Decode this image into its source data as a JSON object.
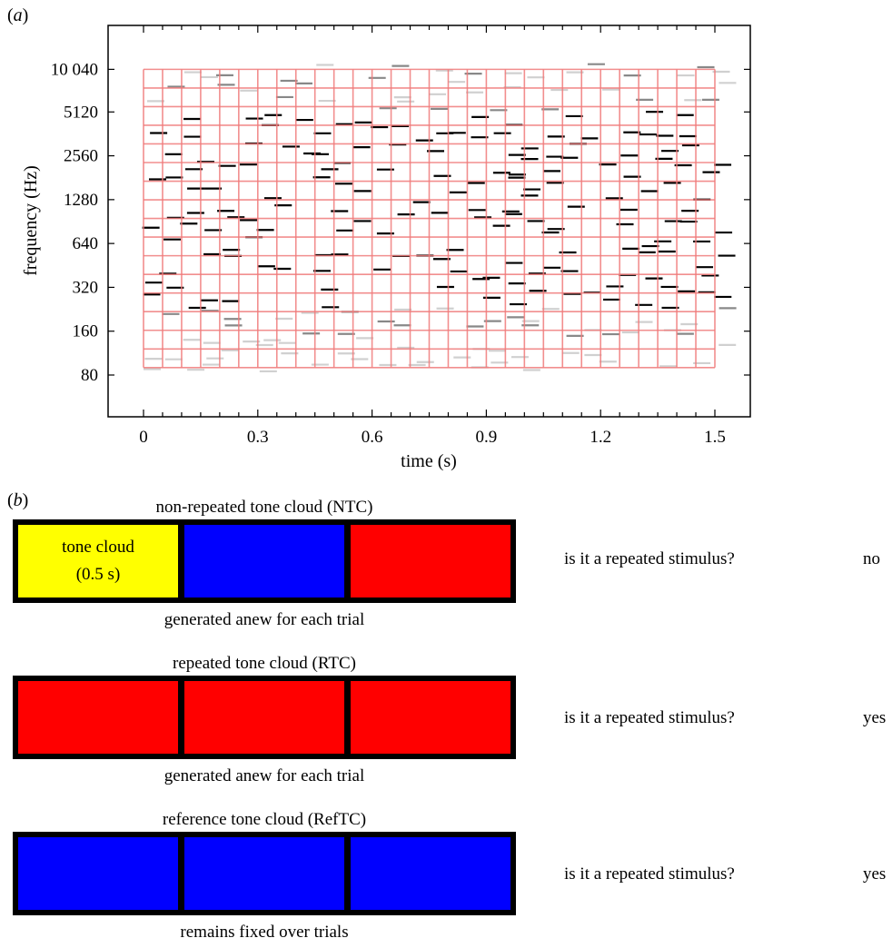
{
  "panel_a": {
    "label": "a",
    "chart_data": {
      "type": "tone-cloud spectrogram",
      "xlabel": "time (s)",
      "ylabel": "frequency (Hz)",
      "x_ticks": [
        "0",
        "0.3",
        "0.6",
        "0.9",
        "1.2",
        "1.5"
      ],
      "x_tick_values": [
        0,
        0.3,
        0.6,
        0.9,
        1.2,
        1.5
      ],
      "y_ticks": [
        "80",
        "160",
        "320",
        "640",
        "1280",
        "2560",
        "5120",
        "10 040"
      ],
      "y_tick_values": [
        80,
        160,
        320,
        640,
        1280,
        2560,
        5120,
        10040
      ],
      "y_scale": "log2",
      "xlim": [
        -0.1,
        1.65
      ],
      "ylim": [
        50,
        15000
      ],
      "grid": {
        "time_step_s": 0.05,
        "t_start": 0,
        "t_end": 1.5,
        "freq_min": 90,
        "freq_max": 10040,
        "freq_rows": 16,
        "color": "#f07a7a"
      },
      "tone_duration_s": 0.045,
      "tone_colors": {
        "high": "#000000",
        "mid": "#888888",
        "faint": "#d0d0d0"
      }
    }
  },
  "panel_b": {
    "label": "b",
    "conditions": [
      {
        "title": "non-repeated tone cloud (NTC)",
        "segments": [
          "#ffff00",
          "#0000ff",
          "#ff0000"
        ],
        "segment_text": "tone cloud\n(0.5 s)",
        "caption": "generated anew for each trial",
        "question": "is it a repeated stimulus?",
        "answer": "no"
      },
      {
        "title": "repeated tone cloud (RTC)",
        "segments": [
          "#ff0000",
          "#ff0000",
          "#ff0000"
        ],
        "caption": "generated anew for each trial",
        "question": "is it a repeated stimulus?",
        "answer": "yes"
      },
      {
        "title": "reference tone cloud (RefTC)",
        "segments": [
          "#0000ff",
          "#0000ff",
          "#0000ff"
        ],
        "caption": "remains fixed over trials",
        "question": "is it a repeated stimulus?",
        "answer": "yes"
      }
    ]
  }
}
